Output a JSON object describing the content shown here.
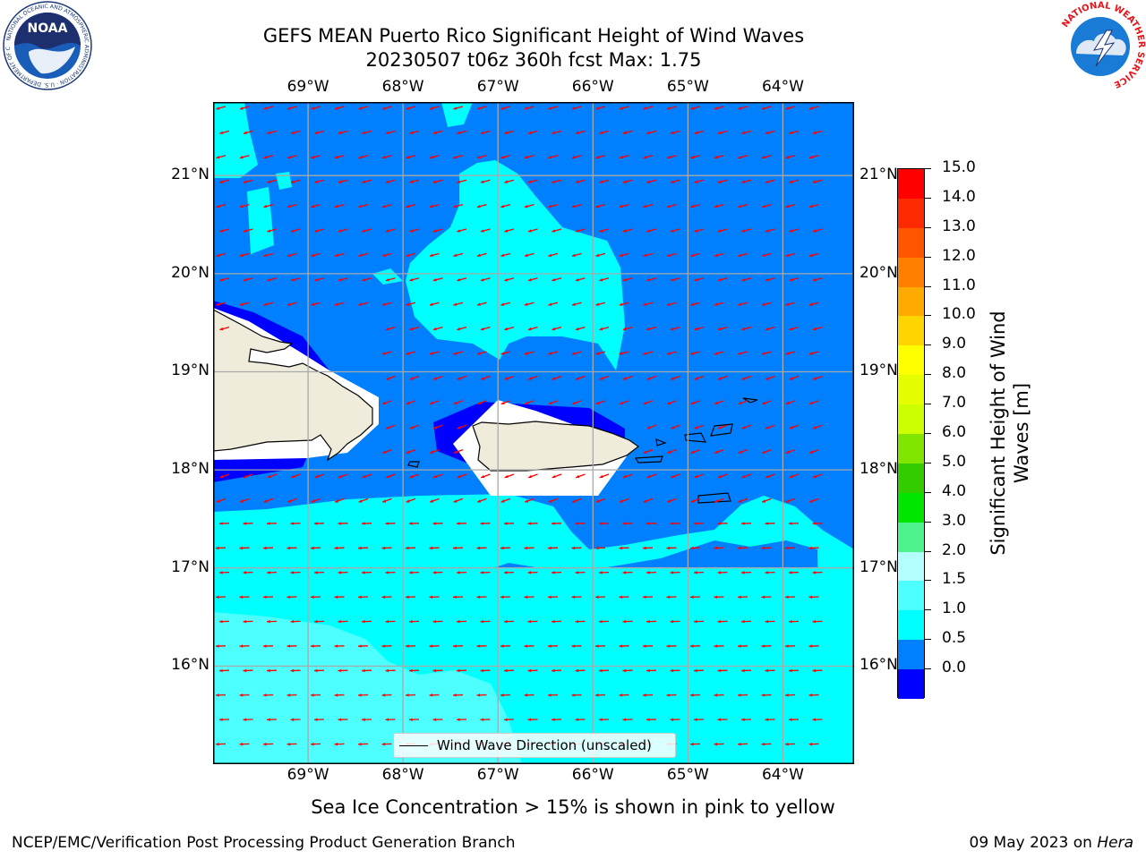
{
  "header": {
    "title_line1": "GEFS MEAN Puerto Rico Significant Height of Wind Waves",
    "title_line2": "20230507 t06z 360h fcst   Max: 1.75"
  },
  "logos": {
    "noaa_text": "NOAA",
    "noaa_ring_text": "NATIONAL OCEANIC AND ATMOSPHERIC ADMINISTRATION · U.S. DEPARTMENT OF COMMERCE",
    "nws_ring_text": "NATIONAL WEATHER SERVICE"
  },
  "map": {
    "lon_labels": [
      "69°W",
      "68°W",
      "67°W",
      "66°W",
      "65°W",
      "64°W"
    ],
    "lat_labels": [
      "21°N",
      "20°N",
      "19°N",
      "18°N",
      "17°N",
      "16°N"
    ],
    "extent": {
      "lon_min": -70.0,
      "lon_max": -63.25,
      "lat_min": 15.0,
      "lat_max": 21.75
    },
    "land_color": "#efecdc",
    "arrow_color": "#ff0000",
    "grid": true,
    "arrow_direction": "east-to-west (from east-northeast)"
  },
  "legend": {
    "label": "Wind Wave Direction (unscaled)",
    "position": "lower-center"
  },
  "colorbar": {
    "title_line1": "Significant Height of Wind",
    "title_line2": "Waves [m]",
    "labels": [
      "15.0",
      "14.0",
      "13.0",
      "12.0",
      "11.0",
      "10.0",
      "9.0",
      "8.0",
      "7.0",
      "6.0",
      "5.0",
      "4.0",
      "3.0",
      "2.0",
      "1.5",
      "1.0",
      "0.5",
      "0.0"
    ],
    "colors": [
      "#ff0000",
      "#ff2b00",
      "#ff5500",
      "#ff8000",
      "#ffaa00",
      "#ffd500",
      "#ffff00",
      "#e6ff00",
      "#ccff00",
      "#80e600",
      "#33cc00",
      "#00e600",
      "#4df28c",
      "#b3ffff",
      "#4dffff",
      "#00ffff",
      "#0080ff",
      "#0000ff"
    ]
  },
  "notes": {
    "sea_ice": "Sea Ice Concentration > 15% is shown in pink to yellow"
  },
  "footer": {
    "left": "NCEP/EMC/Verification Post Processing Product Generation Branch",
    "right_prefix": "09 May 2023 on ",
    "right_host": "Hera"
  }
}
